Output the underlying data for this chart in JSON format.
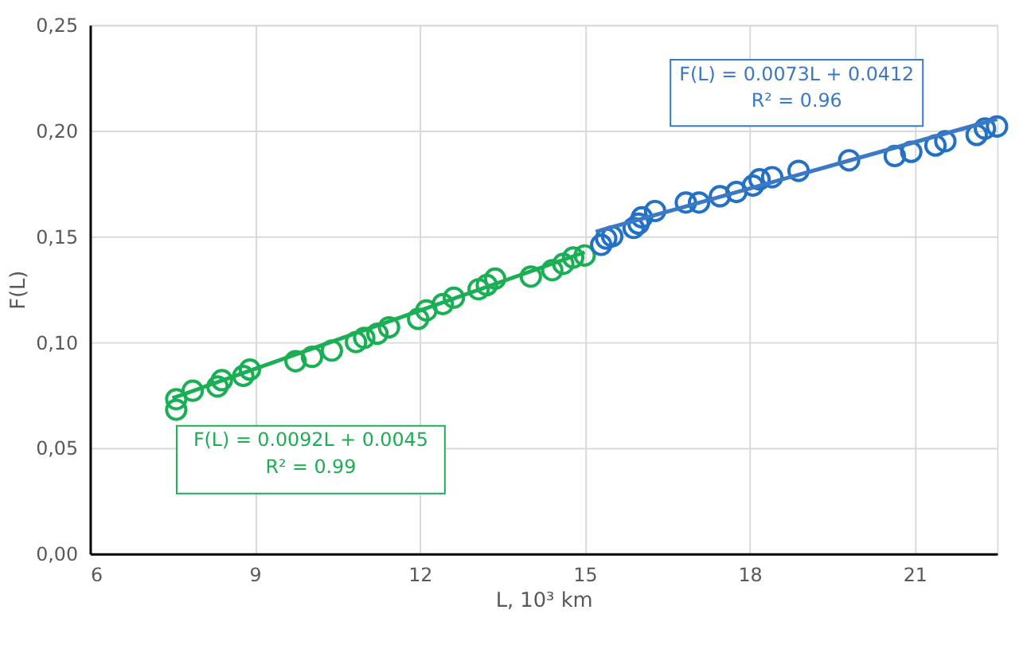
{
  "chart_data": {
    "type": "scatter",
    "xlabel": "L, 10³ km",
    "ylabel": "F(L)",
    "xlim": [
      6,
      22.5
    ],
    "xticks": [
      6,
      9,
      12,
      15,
      18,
      21
    ],
    "ylim": [
      0,
      0.25
    ],
    "yticks": [
      {
        "value": 0,
        "label": "0,00"
      },
      {
        "value": 0.05,
        "label": "0,05"
      },
      {
        "value": 0.1,
        "label": "0,10"
      },
      {
        "value": 0.15,
        "label": "0,15"
      },
      {
        "value": 0.2,
        "label": "0,20"
      },
      {
        "value": 0.25,
        "label": "0,25"
      }
    ],
    "grid": true,
    "marker": "circle",
    "series": [
      {
        "color": "#1aaf54",
        "x": [
          7.57,
          7.57,
          7.87,
          8.32,
          8.4,
          8.79,
          8.91,
          9.74,
          10.04,
          10.4,
          10.84,
          10.99,
          11.23,
          11.44,
          11.97,
          12.12,
          12.42,
          12.62,
          13.07,
          13.22,
          13.37,
          14.02,
          14.41,
          14.61,
          14.79,
          15.0
        ],
        "values": [
          0.068,
          0.073,
          0.077,
          0.079,
          0.082,
          0.084,
          0.087,
          0.091,
          0.093,
          0.096,
          0.1,
          0.102,
          0.104,
          0.107,
          0.111,
          0.115,
          0.118,
          0.121,
          0.125,
          0.127,
          0.13,
          0.131,
          0.134,
          0.137,
          0.14,
          0.141
        ]
      },
      {
        "color": "#2371c4",
        "x": [
          15.3,
          15.39,
          15.5,
          15.89,
          15.98,
          16.04,
          16.28,
          16.84,
          17.08,
          17.46,
          17.76,
          18.06,
          18.18,
          18.41,
          18.89,
          19.81,
          20.64,
          20.94,
          21.38,
          21.56,
          22.13,
          22.28,
          22.5
        ],
        "values": [
          0.146,
          0.149,
          0.15,
          0.154,
          0.156,
          0.159,
          0.162,
          0.166,
          0.166,
          0.169,
          0.171,
          0.174,
          0.177,
          0.178,
          0.181,
          0.186,
          0.188,
          0.19,
          0.193,
          0.195,
          0.198,
          0.201,
          0.202
        ]
      },
      {
        "type": "line",
        "marker": "none",
        "line_style": "solid",
        "color": "#1aaf54",
        "x": [
          7.5,
          15.0
        ],
        "values": [
          0.0735,
          0.1425
        ]
      },
      {
        "type": "line",
        "marker": "none",
        "line_style": "solid",
        "color": "#3b78c6",
        "x": [
          15.2,
          22.5
        ],
        "values": [
          0.1522,
          0.2055
        ]
      }
    ],
    "annotations": [
      "F(L) = 0.0073L + 0.0412\nR² = 0.96",
      "F(L) = 0.0092L + 0.0045\nR² = 0.99"
    ]
  }
}
